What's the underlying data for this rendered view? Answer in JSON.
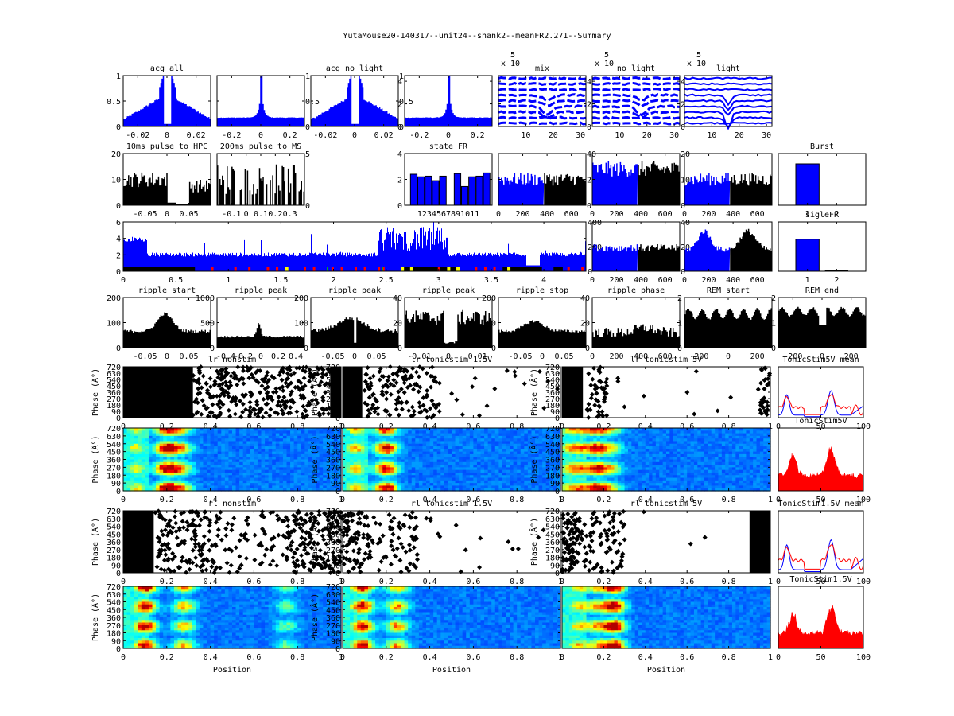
{
  "figure_title": "YutaMouse20-140317--unit24--shank2--meanFR2.271--Summary",
  "colors": {
    "blue": "#0000ff",
    "black": "#000000",
    "red": "#ff0000",
    "yellow": "#ffff00",
    "green": "#00c000"
  },
  "chart_data": [
    {
      "id": "acg-all",
      "type": "bar",
      "title": "acg all",
      "xticks": [
        "-0.02",
        "0",
        "0.02"
      ],
      "xlim": [
        -0.03,
        0.03
      ],
      "yticks": [
        "0",
        "0.5",
        "1"
      ],
      "ylim": [
        0,
        1
      ],
      "shape": "acg-dip",
      "color": "#0000ff",
      "row": 0,
      "col": 0
    },
    {
      "id": "acg-all-wide",
      "type": "bar",
      "title": "",
      "xticks": [
        "-0.2",
        "0",
        "0.2"
      ],
      "xlim": [
        -0.3,
        0.3
      ],
      "yticks": [
        "0",
        "0.5",
        "1"
      ],
      "ylim": [
        0,
        1
      ],
      "shape": "acg-peak",
      "color": "#0000ff",
      "row": 0,
      "col": 1,
      "yright": true
    },
    {
      "id": "acg-nolight",
      "type": "bar",
      "title": "acg no light",
      "xticks": [
        "-0.02",
        "0",
        "0.02"
      ],
      "xlim": [
        -0.03,
        0.03
      ],
      "yticks": [
        "0",
        "0.5",
        "1"
      ],
      "ylim": [
        0,
        1
      ],
      "shape": "acg-dip",
      "color": "#0000ff",
      "row": 0,
      "col": 2,
      "yright": true
    },
    {
      "id": "acg-nolight-wide",
      "type": "bar",
      "title": "",
      "xticks": [
        "-0.2",
        "0",
        "0.2"
      ],
      "xlim": [
        -0.3,
        0.3
      ],
      "yticks": [
        "0",
        "2",
        "4"
      ],
      "ylim": [
        0,
        4.5
      ],
      "shape": "acg-peak",
      "color": "#0000ff",
      "row": 0,
      "col": 3
    },
    {
      "id": "wave-mix",
      "type": "line",
      "title": "mix",
      "exponent": "x 10",
      "exponent_power": "5",
      "xticks": [
        "10",
        "20",
        "30"
      ],
      "xlim": [
        0,
        32
      ],
      "yticks": [
        "0",
        "2",
        "4"
      ],
      "ylim": [
        0,
        4.5
      ],
      "shape": "wave",
      "row": 0,
      "col": 4,
      "yright": true
    },
    {
      "id": "wave-nolight",
      "type": "line",
      "title": "no light",
      "exponent": "x 10",
      "exponent_power": "5",
      "xticks": [
        "10",
        "20",
        "30"
      ],
      "xlim": [
        0,
        32
      ],
      "yticks": [
        "0",
        "2",
        "4"
      ],
      "ylim": [
        0,
        4.5
      ],
      "shape": "wave",
      "row": 0,
      "col": 5,
      "yright": true
    },
    {
      "id": "wave-light",
      "type": "line",
      "title": "light",
      "exponent": "x 10",
      "exponent_power": "5",
      "xticks": [
        "10",
        "20",
        "30"
      ],
      "xlim": [
        0,
        32
      ],
      "yticks": [],
      "ylim": [
        0,
        4.5
      ],
      "shape": "wave-light",
      "row": 0,
      "col": 6
    },
    {
      "id": "pulse-hpc",
      "type": "bar",
      "title": "10ms pulse to HPC",
      "xticks": [
        "-0.05",
        "0",
        "0.05"
      ],
      "xlim": [
        -0.1,
        0.1
      ],
      "yticks": [
        "0",
        "10",
        "20"
      ],
      "ylim": [
        0,
        20
      ],
      "shape": "pulse-hpc",
      "color": "#000000",
      "row": 1,
      "col": 0
    },
    {
      "id": "pulse-ms",
      "type": "bar",
      "title": "200ms pulse to MS",
      "xticks": [
        "-0.1",
        "0",
        "0.1",
        "0.2",
        "0.3"
      ],
      "xlim": [
        -0.2,
        0.4
      ],
      "yticks": [
        "0",
        "5"
      ],
      "ylim": [
        0,
        5
      ],
      "shape": "pulse-ms",
      "color": "#000000",
      "row": 1,
      "col": 1,
      "yright": true
    },
    {
      "id": "state-fr",
      "type": "bar",
      "title": "state FR",
      "categories": [
        "1",
        "2",
        "3",
        "4",
        "5",
        "6",
        "7",
        "8",
        "9",
        "10",
        "11"
      ],
      "xticklabel": "1234567891011",
      "values": [
        2.4,
        2.2,
        2.25,
        1.9,
        2.25,
        0,
        2.45,
        1.45,
        2.2,
        2.25,
        2.5
      ],
      "yticks": [
        "0",
        "2",
        "4"
      ],
      "ylim": [
        0,
        4
      ],
      "color": "#0000ff",
      "row": 1,
      "col": 3
    },
    {
      "id": "fr-time-1",
      "type": "bar",
      "title": "",
      "xticks": [
        "0",
        "200",
        "400",
        "600"
      ],
      "xlim": [
        0,
        720
      ],
      "yticks": [
        "0",
        "20",
        "40"
      ],
      "ylim": [
        0,
        40
      ],
      "shape": "fr-time",
      "split": 370,
      "row": 1,
      "col": 4,
      "yright": true
    },
    {
      "id": "fr-time-2",
      "type": "bar",
      "title": "",
      "xticks": [
        "0",
        "200",
        "400",
        "600"
      ],
      "xlim": [
        0,
        720
      ],
      "yticks": [
        "0",
        "10",
        "20"
      ],
      "ylim": [
        0,
        20
      ],
      "shape": "fr-time-hi",
      "split": 370,
      "row": 1,
      "col": 5,
      "yright": true
    },
    {
      "id": "fr-time-3",
      "type": "bar",
      "title": "",
      "xticks": [
        "0",
        "200",
        "400",
        "600"
      ],
      "xlim": [
        0,
        720
      ],
      "yticks": [],
      "ylim": [
        0,
        0.1
      ],
      "shape": "fr-time",
      "split": 370,
      "row": 1,
      "col": 6
    },
    {
      "id": "burst",
      "type": "bar",
      "title": "Burst",
      "categories": [
        "1",
        "2"
      ],
      "values": [
        0.8,
        0
      ],
      "ylim": [
        0,
        1
      ],
      "xticks": [
        "1",
        "2"
      ],
      "color": "#0000ff",
      "row": 1,
      "col": 7
    },
    {
      "id": "fr-session",
      "type": "bar",
      "title": "",
      "xticks": [
        "0",
        "0.5",
        "1",
        "1.5",
        "2",
        "2.5",
        "3",
        "3.5",
        "4"
      ],
      "xlim": [
        0,
        4.4
      ],
      "yticks": [
        "0",
        "2",
        "4",
        "6"
      ],
      "ylim": [
        0,
        6
      ],
      "yticks_right": [
        "0",
        "200",
        "400"
      ],
      "shape": "session",
      "color": "#0000ff",
      "row": 2,
      "col": 0,
      "span": 5
    },
    {
      "id": "fr-time-4",
      "type": "bar",
      "title": "",
      "xticks": [
        "0",
        "200",
        "400",
        "600"
      ],
      "xlim": [
        0,
        720
      ],
      "yticks": [
        "0",
        "20",
        "40"
      ],
      "ylim": [
        0,
        40
      ],
      "shape": "fr-flat",
      "split": 370,
      "row": 2,
      "col": 5,
      "yright": true
    },
    {
      "id": "fr-time-5",
      "type": "bar",
      "title": "",
      "xticks": [
        "0",
        "200",
        "400",
        "600"
      ],
      "xlim": [
        0,
        720
      ],
      "yticks": [],
      "ylim": [
        0,
        2
      ],
      "shape": "fr-peaks",
      "split": 370,
      "row": 2,
      "col": 6
    },
    {
      "id": "sigle-fr",
      "type": "bar",
      "title": "sigleFR",
      "categories": [
        "1",
        "2"
      ],
      "values": [
        0.65,
        0.02
      ],
      "ylim": [
        0,
        1
      ],
      "xticks": [
        "1",
        "2"
      ],
      "color": "#0000ff",
      "row": 2,
      "col": 7
    },
    {
      "id": "ripple-start",
      "type": "bar",
      "title": "ripple start",
      "xticks": [
        "-0.05",
        "0",
        "0.05"
      ],
      "xlim": [
        -0.1,
        0.1
      ],
      "yticks": [
        "0",
        "100",
        "200"
      ],
      "ylim": [
        0,
        200
      ],
      "shape": "ripple-start",
      "color": "#000000",
      "row": 3,
      "col": 0
    },
    {
      "id": "ripple-peak-1",
      "type": "bar",
      "title": "ripple peak",
      "xticks": [
        "-0.4",
        "-0.2",
        "0",
        "0.2",
        "0.4"
      ],
      "xlim": [
        -0.5,
        0.5
      ],
      "yticks": [
        "0",
        "500",
        "1000"
      ],
      "ylim": [
        0,
        1000
      ],
      "shape": "ripple-peak1",
      "color": "#000000",
      "row": 3,
      "col": 1
    },
    {
      "id": "ripple-peak-2",
      "type": "bar",
      "title": "ripple peak",
      "xticks": [
        "-0.05",
        "0",
        "0.05"
      ],
      "xlim": [
        -0.1,
        0.1
      ],
      "yticks": [
        "0",
        "100",
        "200"
      ],
      "ylim": [
        0,
        200
      ],
      "shape": "ripple-peak2",
      "color": "#000000",
      "row": 3,
      "col": 2
    },
    {
      "id": "ripple-peak-3",
      "type": "bar",
      "title": "ripple peak",
      "xticks": [
        "-0.01",
        "0",
        "0.01"
      ],
      "xlim": [
        -0.015,
        0.015
      ],
      "yticks": [
        "0",
        "20",
        "40"
      ],
      "ylim": [
        0,
        40
      ],
      "shape": "ripple-peak3",
      "color": "#000000",
      "row": 3,
      "col": 3
    },
    {
      "id": "ripple-stop",
      "type": "bar",
      "title": "ripple stop",
      "xticks": [
        "-0.05",
        "0",
        "0.05"
      ],
      "xlim": [
        -0.1,
        0.1
      ],
      "yticks": [
        "0",
        "100",
        "200"
      ],
      "ylim": [
        0,
        200
      ],
      "shape": "ripple-stop",
      "color": "#000000",
      "row": 3,
      "col": 4
    },
    {
      "id": "ripple-phase",
      "type": "bar",
      "title": "ripple phase",
      "xticks": [
        "0",
        "200",
        "400",
        "600"
      ],
      "xlim": [
        0,
        720
      ],
      "yticks": [
        "0",
        "20",
        "40"
      ],
      "ylim": [
        0,
        40
      ],
      "shape": "ripple-phase",
      "color": "#000000",
      "row": 3,
      "col": 5
    },
    {
      "id": "rem-start",
      "type": "area",
      "title": "REM start",
      "xticks": [
        "-200",
        "0",
        "200"
      ],
      "xlim": [
        -300,
        300
      ],
      "yticks": [
        "0",
        "1",
        "2"
      ],
      "ylim": [
        0,
        2
      ],
      "shape": "rem-start",
      "color": "#000000",
      "row": 3,
      "col": 6
    },
    {
      "id": "rem-end",
      "type": "area",
      "title": "REM end",
      "xticks": [
        "-200",
        "0",
        "200"
      ],
      "xlim": [
        -300,
        300
      ],
      "yticks": [
        "0",
        "1",
        "2"
      ],
      "ylim": [
        0,
        2
      ],
      "shape": "rem-end",
      "color": "#000000",
      "row": 3,
      "col": 7
    },
    {
      "id": "raster-lr-nonstim",
      "type": "scatter",
      "title": "lr nonstim",
      "xlabel": "",
      "ylabel": "Phase (Â°)",
      "xticks": [
        "0",
        "0.2",
        "0.4",
        "0.6",
        "0.8",
        "1"
      ],
      "xlim": [
        0,
        1
      ],
      "yticks": [
        "0",
        "90",
        "180",
        "270",
        "360",
        "450",
        "540",
        "630",
        "720"
      ],
      "ylim": [
        0,
        720
      ],
      "shape": "raster-dense",
      "row": 4,
      "col": 0
    },
    {
      "id": "raster-lr-tonic15",
      "type": "scatter",
      "title": "lr tonicstim 1.5V",
      "ylabel": "Phase (Â°)",
      "xticks": [
        "0",
        "0.2",
        "0.4",
        "0.6",
        "0.8",
        "1"
      ],
      "xlim": [
        0,
        1
      ],
      "yticks": [
        "0",
        "90",
        "180",
        "270",
        "360",
        "450",
        "540",
        "630",
        "720"
      ],
      "ylim": [
        0,
        720
      ],
      "shape": "raster-mid",
      "row": 4,
      "col": 1
    },
    {
      "id": "raster-lr-tonic5",
      "type": "scatter",
      "title": "lr tonicstim 5V",
      "ylabel": "Phase (Â°)",
      "xticks": [
        "0",
        "0.2",
        "0.4",
        "0.6",
        "0.8",
        "1"
      ],
      "xlim": [
        0,
        1
      ],
      "yticks": [
        "0",
        "90",
        "180",
        "270",
        "360",
        "450",
        "540",
        "630",
        "720"
      ],
      "ylim": [
        0,
        720
      ],
      "shape": "raster-sparse",
      "row": 4,
      "col": 2
    },
    {
      "id": "tonic5-mean",
      "type": "line",
      "title": "TonicStim5V mean",
      "xticks": [
        "0",
        "50",
        "100"
      ],
      "xlim": [
        0,
        100
      ],
      "ylim": [
        0,
        40
      ],
      "series": [
        {
          "name": "blue",
          "color": "#0000ff"
        },
        {
          "name": "red",
          "color": "#ff0000"
        }
      ],
      "shape": "mean",
      "row": 4,
      "col": 3
    },
    {
      "id": "heat-lr-nonstim",
      "type": "heatmap",
      "title": "",
      "ylabel": "Phase (Â°)",
      "xticks": [
        "0",
        "0.2",
        "0.4",
        "0.6",
        "0.8",
        "1"
      ],
      "xlim": [
        0,
        1
      ],
      "yticks": [
        "0",
        "90",
        "180",
        "270",
        "360",
        "450",
        "540",
        "630",
        "720"
      ],
      "ylim": [
        0,
        720
      ],
      "shape": "heat-a",
      "row": 5,
      "col": 0
    },
    {
      "id": "heat-lr-tonic15",
      "type": "heatmap",
      "title": "",
      "ylabel": "Phase (Â°)",
      "xticks": [
        "0",
        "0.2",
        "0.4",
        "0.6",
        "0.8",
        "1"
      ],
      "xlim": [
        0,
        1
      ],
      "yticks": [
        "0",
        "90",
        "180",
        "270",
        "360",
        "450",
        "540",
        "630",
        "720"
      ],
      "ylim": [
        0,
        720
      ],
      "shape": "heat-b",
      "row": 5,
      "col": 1
    },
    {
      "id": "heat-lr-tonic5",
      "type": "heatmap",
      "title": "",
      "ylabel": "Phase (Â°)",
      "xticks": [
        "0",
        "0.2",
        "0.4",
        "0.6",
        "0.8",
        "1"
      ],
      "xlim": [
        0,
        1
      ],
      "yticks": [
        "0",
        "90",
        "180",
        "270",
        "360",
        "450",
        "540",
        "630",
        "720"
      ],
      "ylim": [
        0,
        720
      ],
      "shape": "heat-c",
      "row": 5,
      "col": 2
    },
    {
      "id": "tonic5",
      "type": "area",
      "title": "TonicStim5V",
      "xticks": [
        "0",
        "50",
        "100"
      ],
      "xlim": [
        0,
        100
      ],
      "ylim": [
        0,
        40
      ],
      "shape": "red-fill",
      "row": 5,
      "col": 3
    },
    {
      "id": "raster-rl-nonstim",
      "type": "scatter",
      "title": "rl nonstim",
      "ylabel": "Phase (Â°)",
      "xticks": [
        "0",
        "0.2",
        "0.4",
        "0.6",
        "0.8",
        "1"
      ],
      "xlim": [
        0,
        1
      ],
      "yticks": [
        "0",
        "90",
        "180",
        "270",
        "360",
        "450",
        "540",
        "630",
        "720"
      ],
      "ylim": [
        0,
        720
      ],
      "shape": "raster-dense2",
      "row": 6,
      "col": 0
    },
    {
      "id": "raster-rl-tonic15",
      "type": "scatter",
      "title": "rl tonicstim 1.5V",
      "ylabel": "Phase (Â°)",
      "xticks": [
        "0",
        "0.2",
        "0.4",
        "0.6",
        "0.8",
        "1"
      ],
      "xlim": [
        0,
        1
      ],
      "yticks": [
        "0",
        "90",
        "180",
        "270",
        "360",
        "450",
        "540",
        "630",
        "720"
      ],
      "ylim": [
        0,
        720
      ],
      "shape": "raster-mid2",
      "row": 6,
      "col": 1
    },
    {
      "id": "raster-rl-tonic5",
      "type": "scatter",
      "title": "rl tonicstim 5V",
      "ylabel": "Phase (Â°)",
      "xticks": [
        "0",
        "0.2",
        "0.4",
        "0.6",
        "0.8",
        "1"
      ],
      "xlim": [
        0,
        1
      ],
      "yticks": [
        "0",
        "90",
        "180",
        "270",
        "360",
        "450",
        "540",
        "630",
        "720"
      ],
      "ylim": [
        0,
        720
      ],
      "shape": "raster-sparse2",
      "row": 6,
      "col": 2
    },
    {
      "id": "tonic15-mean",
      "type": "line",
      "title": "TonicStim1.5V mean",
      "xticks": [
        "0",
        "50",
        "100"
      ],
      "xlim": [
        0,
        100
      ],
      "ylim": [
        0,
        40
      ],
      "series": [
        {
          "name": "blue",
          "color": "#0000ff"
        },
        {
          "name": "red",
          "color": "#ff0000"
        }
      ],
      "shape": "mean",
      "row": 6,
      "col": 3
    },
    {
      "id": "heat-rl-nonstim",
      "type": "heatmap",
      "title": "",
      "xlabel": "Position",
      "ylabel": "Phase (Â°)",
      "xticks": [
        "0",
        "0.2",
        "0.4",
        "0.6",
        "0.8",
        "1"
      ],
      "xlim": [
        0,
        1
      ],
      "yticks": [
        "0",
        "90",
        "180",
        "270",
        "360",
        "450",
        "540",
        "630",
        "720"
      ],
      "ylim": [
        0,
        720
      ],
      "shape": "heat-d",
      "row": 7,
      "col": 0
    },
    {
      "id": "heat-rl-tonic15",
      "type": "heatmap",
      "title": "",
      "xlabel": "Position",
      "ylabel": "Phase (Â°)",
      "xticks": [
        "0",
        "0.2",
        "0.4",
        "0.6",
        "0.8",
        "1"
      ],
      "xlim": [
        0,
        1
      ],
      "yticks": [
        "0",
        "90",
        "180",
        "270",
        "360",
        "450",
        "540",
        "630",
        "720"
      ],
      "ylim": [
        0,
        720
      ],
      "shape": "heat-e",
      "row": 7,
      "col": 1
    },
    {
      "id": "heat-rl-tonic5",
      "type": "heatmap",
      "title": "",
      "xlabel": "Position",
      "ylabel": "",
      "xticks": [
        "0",
        "0.2",
        "0.4",
        "0.6",
        "0.8",
        "1"
      ],
      "xlim": [
        0,
        1
      ],
      "yticks": [],
      "ylim": [
        0,
        720
      ],
      "shape": "heat-f",
      "row": 7,
      "col": 2
    },
    {
      "id": "tonic15",
      "type": "area",
      "title": "TonicStim1.5V",
      "xticks": [
        "0",
        "50",
        "100"
      ],
      "xlim": [
        0,
        100
      ],
      "ylim": [
        0,
        40
      ],
      "shape": "red-fill",
      "row": 7,
      "col": 3
    }
  ]
}
